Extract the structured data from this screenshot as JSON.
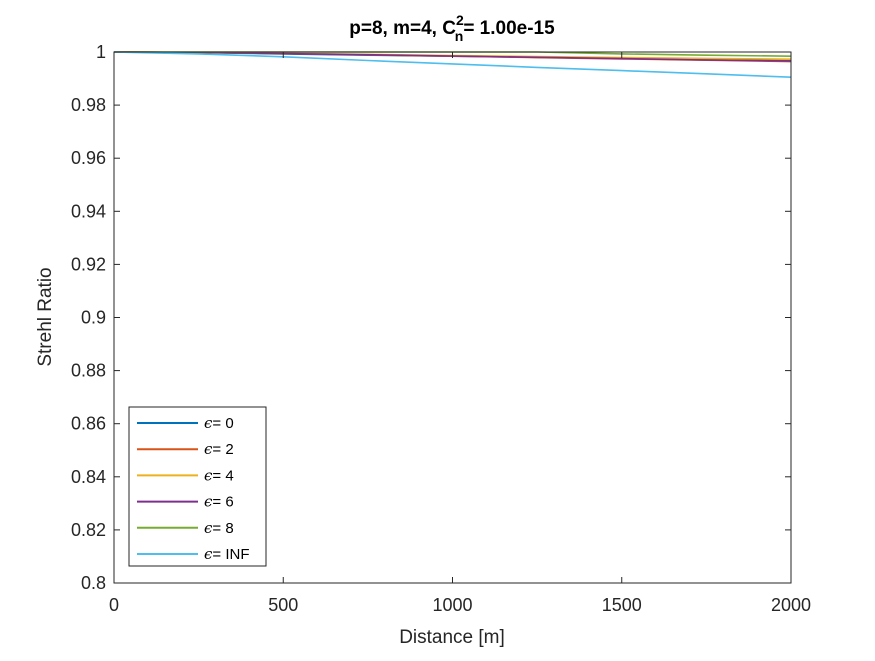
{
  "chart_data": {
    "type": "line",
    "title": {
      "prefix": "p=8, m=4, C",
      "superscript": "2",
      "subscript": "n",
      "suffix": "= 1.00e-15"
    },
    "xlabel": "Distance [m]",
    "ylabel": "Strehl Ratio",
    "xlim": [
      0,
      2000
    ],
    "ylim": [
      0.8,
      1.0
    ],
    "xticks": [
      0,
      500,
      1000,
      1500,
      2000
    ],
    "yticks": [
      0.8,
      0.82,
      0.84,
      0.86,
      0.88,
      0.9,
      0.92,
      0.94,
      0.96,
      0.98,
      1.0
    ],
    "xtick_labels": [
      "0",
      "500",
      "1000",
      "1500",
      "2000"
    ],
    "ytick_labels": [
      "0.8",
      "0.82",
      "0.84",
      "0.86",
      "0.88",
      "0.9",
      "0.92",
      "0.94",
      "0.96",
      "0.98",
      "1"
    ],
    "grid": false,
    "legend": {
      "location": "bottom-left",
      "symbol": "ϵ",
      "separator": "= "
    },
    "x": [
      0,
      250,
      500,
      750,
      1000,
      1250,
      1500,
      1750,
      2000
    ],
    "series": [
      {
        "name": "0",
        "color": "#0072BD",
        "values": [
          1.0,
          0.9998,
          0.9993,
          0.9988,
          0.9984,
          0.998,
          0.9976,
          0.9972,
          0.9968
        ]
      },
      {
        "name": "2",
        "color": "#D95319",
        "values": [
          1.0,
          0.9998,
          0.9994,
          0.9989,
          0.9984,
          0.9979,
          0.9974,
          0.9969,
          0.9964
        ]
      },
      {
        "name": "4",
        "color": "#EDB120",
        "values": [
          1.0,
          0.9999,
          0.9995,
          0.9991,
          0.9987,
          0.9983,
          0.9979,
          0.9976,
          0.9973
        ]
      },
      {
        "name": "6",
        "color": "#7E2F8E",
        "values": [
          1.0,
          0.9998,
          0.9994,
          0.999,
          0.9985,
          0.998,
          0.9975,
          0.997,
          0.9966
        ]
      },
      {
        "name": "8",
        "color": "#77AC30",
        "values": [
          1.0,
          1.0,
          1.0,
          1.0,
          1.0,
          1.0,
          0.9993,
          0.9988,
          0.9984
        ]
      },
      {
        "name": "INF",
        "color": "#4DBEEE",
        "values": [
          1.0,
          0.9993,
          0.9982,
          0.9968,
          0.9955,
          0.9942,
          0.993,
          0.9918,
          0.9905
        ]
      }
    ]
  }
}
